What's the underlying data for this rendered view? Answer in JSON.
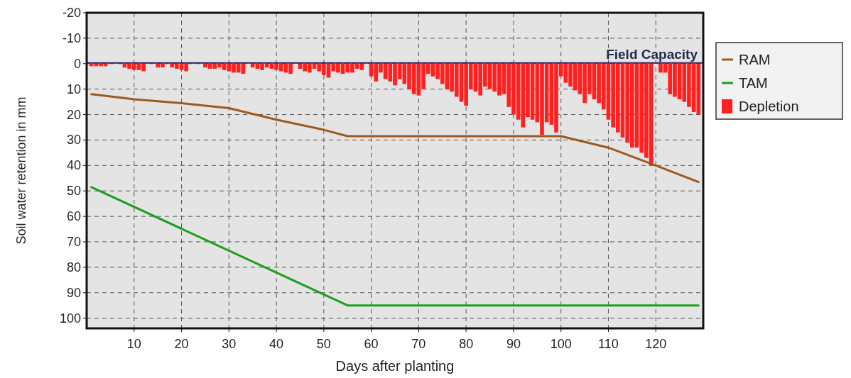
{
  "chart_data": {
    "type": "line",
    "xlabel": "Days after planting",
    "ylabel": "Soil water retention in mm",
    "xlim": [
      0,
      130
    ],
    "xticks": [
      10,
      20,
      30,
      40,
      50,
      60,
      70,
      80,
      90,
      100,
      110,
      120
    ],
    "ylim": [
      104,
      -20
    ],
    "yticks": [
      -20,
      -10,
      0,
      10,
      20,
      30,
      40,
      50,
      60,
      70,
      80,
      90,
      100
    ],
    "grid": true,
    "legend": "right",
    "ref_lines": [
      {
        "axis": "y",
        "value": 0,
        "label": "Field Capacity",
        "color": "#3b1f5e"
      }
    ],
    "series": [
      {
        "name": "RAM",
        "color": "#9c5a22",
        "x": [
          1,
          10,
          20,
          30,
          40,
          50,
          55,
          100,
          110,
          120,
          129
        ],
        "values": [
          12,
          14,
          15.5,
          17.5,
          22,
          26,
          28.5,
          28.5,
          33,
          40,
          46.5
        ]
      },
      {
        "name": "TAM",
        "color": "#1e9e1e",
        "x": [
          1,
          55,
          129
        ],
        "values": [
          48.5,
          95,
          95
        ]
      },
      {
        "name": "Depletion",
        "type": "bar",
        "color": "#ff2020",
        "x": [
          1,
          2,
          3,
          4,
          5,
          6,
          7,
          8,
          9,
          10,
          11,
          12,
          13,
          14,
          15,
          16,
          17,
          18,
          19,
          20,
          21,
          22,
          23,
          24,
          25,
          26,
          27,
          28,
          29,
          30,
          31,
          32,
          33,
          34,
          35,
          36,
          37,
          38,
          39,
          40,
          41,
          42,
          43,
          44,
          45,
          46,
          47,
          48,
          49,
          50,
          51,
          52,
          53,
          54,
          55,
          56,
          57,
          58,
          59,
          60,
          61,
          62,
          63,
          64,
          65,
          66,
          67,
          68,
          69,
          70,
          71,
          72,
          73,
          74,
          75,
          76,
          77,
          78,
          79,
          80,
          81,
          82,
          83,
          84,
          85,
          86,
          87,
          88,
          89,
          90,
          91,
          92,
          93,
          94,
          95,
          96,
          97,
          98,
          99,
          100,
          101,
          102,
          103,
          104,
          105,
          106,
          107,
          108,
          109,
          110,
          111,
          112,
          113,
          114,
          115,
          116,
          117,
          118,
          119,
          120,
          121,
          122,
          123,
          124,
          125,
          126,
          127,
          128,
          129
        ],
        "values": [
          1,
          1,
          1,
          1,
          0,
          0,
          0,
          1.5,
          2,
          2.5,
          2.5,
          3,
          0,
          0,
          1.5,
          1.5,
          0,
          1.5,
          2,
          2.5,
          3,
          0,
          0,
          0,
          1.5,
          2,
          2,
          1.5,
          2.5,
          3,
          3.5,
          3.5,
          4,
          0,
          1.5,
          2,
          2.5,
          1.5,
          2,
          2.5,
          3,
          3.5,
          4,
          0,
          2,
          3,
          3.5,
          2,
          3,
          4.5,
          5.5,
          3,
          3.5,
          4,
          3.5,
          3.5,
          2,
          2.5,
          0,
          5,
          7,
          3.5,
          6,
          7,
          8.5,
          6,
          8,
          10,
          12,
          12.5,
          10,
          4,
          5,
          6,
          8,
          10,
          11,
          13,
          15,
          16.5,
          10,
          11,
          12.5,
          9,
          10,
          11,
          12.5,
          12,
          17,
          20,
          22,
          25,
          21,
          22,
          23,
          28,
          23,
          24,
          27,
          5,
          7.5,
          9,
          10.5,
          12,
          15.5,
          12,
          14,
          15.5,
          18,
          22,
          25,
          27,
          29,
          31,
          33,
          33,
          35,
          37,
          40,
          0,
          3.5,
          3.5,
          12,
          13,
          14,
          15,
          17,
          19,
          20
        ]
      }
    ]
  }
}
